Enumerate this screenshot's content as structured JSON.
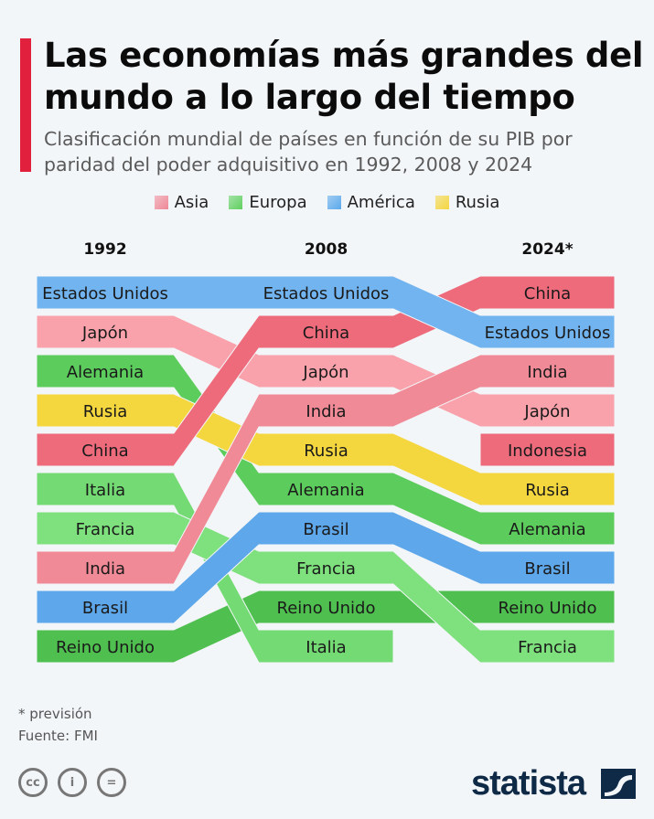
{
  "header": {
    "title": "Las economías más grandes del mundo a lo largo del tiempo",
    "subtitle": "Clasificación mundial de países en función de su PIB por paridad del poder adquisitivo en 1992, 2008 y 2024"
  },
  "legend": [
    {
      "label": "Asia",
      "color": "#f08896"
    },
    {
      "label": "Europa",
      "color": "#5fd05f"
    },
    {
      "label": "América",
      "color": "#5aa8ec"
    },
    {
      "label": "Rusia",
      "color": "#f4d63e"
    }
  ],
  "chart_data": {
    "type": "bump",
    "years": [
      "1992",
      "2008",
      "2024*"
    ],
    "rankings": [
      [
        "Estados Unidos",
        "Japón",
        "Alemania",
        "Rusia",
        "China",
        "Italia",
        "Francia",
        "India",
        "Brasil",
        "Reino Unido"
      ],
      [
        "Estados Unidos",
        "China",
        "Japón",
        "India",
        "Rusia",
        "Alemania",
        "Brasil",
        "Francia",
        "Reino Unido",
        "Italia"
      ],
      [
        "China",
        "Estados Unidos",
        "India",
        "Japón",
        "Indonesia",
        "Rusia",
        "Alemania",
        "Brasil",
        "Reino Unido",
        "Francia"
      ]
    ],
    "country_colors": {
      "Estados Unidos": "#72b4ef",
      "Japón": "#f9a2ab",
      "China": "#ee6b7c",
      "India": "#f08a96",
      "Indonesia": "#ee6b7c",
      "Alemania": "#5ccc5c",
      "Rusia": "#f4d63e",
      "Italia": "#74da74",
      "Francia": "#7ee17e",
      "Reino Unido": "#4fc04f",
      "Brasil": "#5da7ea"
    }
  },
  "footer": {
    "note": "* previsión",
    "source": "Fuente: FMI",
    "brand": "statista"
  }
}
